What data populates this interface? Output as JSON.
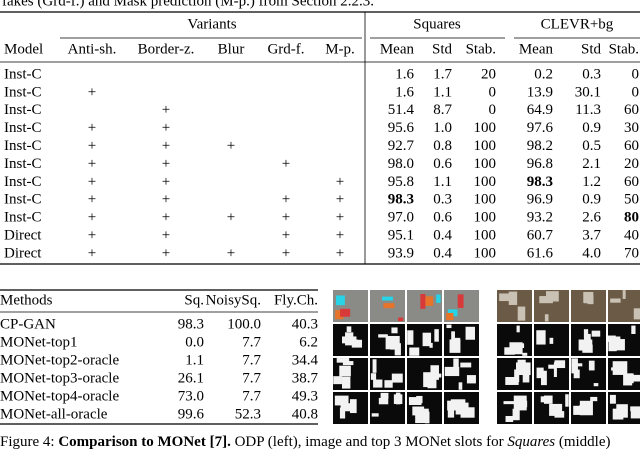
{
  "top_caption": "fakes (Grd-f.) and Mask prediction (M-p.) from Section 2.2.3.",
  "table1": {
    "groups": [
      "Variants",
      "Squares",
      "CLEVR+bg"
    ],
    "columns": [
      "Model",
      "Anti-sh.",
      "Border-z.",
      "Blur",
      "Grd-f.",
      "M-p.",
      "Mean",
      "Std",
      "Stab.",
      "Mean",
      "Std",
      "Stab."
    ],
    "rows": [
      [
        "Inst-C",
        null,
        null,
        null,
        null,
        null,
        "1.6",
        "1.7",
        "20",
        "0.2",
        "0.3",
        "0"
      ],
      [
        "Inst-C",
        "+",
        null,
        null,
        null,
        null,
        "1.6",
        "1.1",
        "0",
        "13.9",
        "30.1",
        "0"
      ],
      [
        "Inst-C",
        null,
        "+",
        null,
        null,
        null,
        "51.4",
        "8.7",
        "0",
        "64.9",
        "11.3",
        "60"
      ],
      [
        "Inst-C",
        "+",
        "+",
        null,
        null,
        null,
        "95.6",
        "1.0",
        "100",
        "97.6",
        "0.9",
        "30"
      ],
      [
        "Inst-C",
        "+",
        "+",
        "+",
        null,
        null,
        "92.7",
        "0.8",
        "100",
        "98.2",
        "0.5",
        "60"
      ],
      [
        "Inst-C",
        "+",
        "+",
        null,
        "+",
        null,
        "98.0",
        "0.6",
        "100",
        "96.8",
        "2.1",
        "20"
      ],
      [
        "Inst-C",
        "+",
        "+",
        null,
        null,
        "+",
        "95.8",
        "1.1",
        "100",
        "98.3",
        "1.2",
        "60"
      ],
      [
        "Inst-C",
        "+",
        "+",
        null,
        "+",
        "+",
        "98.3",
        "0.3",
        "100",
        "96.9",
        "0.9",
        "50"
      ],
      [
        "Inst-C",
        "+",
        "+",
        "+",
        "+",
        "+",
        "97.0",
        "0.6",
        "100",
        "93.2",
        "2.6",
        "80"
      ],
      [
        "Direct",
        "+",
        "+",
        null,
        "+",
        "+",
        "95.1",
        "0.4",
        "100",
        "60.7",
        "3.7",
        "40"
      ],
      [
        "Direct",
        "+",
        "+",
        "+",
        "+",
        "+",
        "93.9",
        "0.4",
        "100",
        "61.6",
        "4.0",
        "70"
      ]
    ]
  },
  "table2": {
    "columns": [
      "Methods",
      "Sq.",
      "NoisySq.",
      "Fly.Ch."
    ],
    "rows": [
      [
        "CP-GAN",
        "98.3",
        "100.0",
        "40.3"
      ],
      [
        "MONet-top1",
        "0.0",
        "7.7",
        "6.2"
      ],
      [
        "MONet-top2-oracle",
        "1.1",
        "7.7",
        "34.4"
      ],
      [
        "MONet-top3-oracle",
        "26.1",
        "7.7",
        "38.7"
      ],
      [
        "MONet-top4-oracle",
        "73.0",
        "7.7",
        "49.3"
      ],
      [
        "MONet-all-oracle",
        "99.6",
        "52.3",
        "40.8"
      ]
    ]
  },
  "caption": {
    "label": "Figure 4:",
    "bold": "Comparison to MONet [7].",
    "text1": " ODP (left), image and top 3 MONet slots for ",
    "italic": "Squares",
    "text2": " (middle)"
  }
}
